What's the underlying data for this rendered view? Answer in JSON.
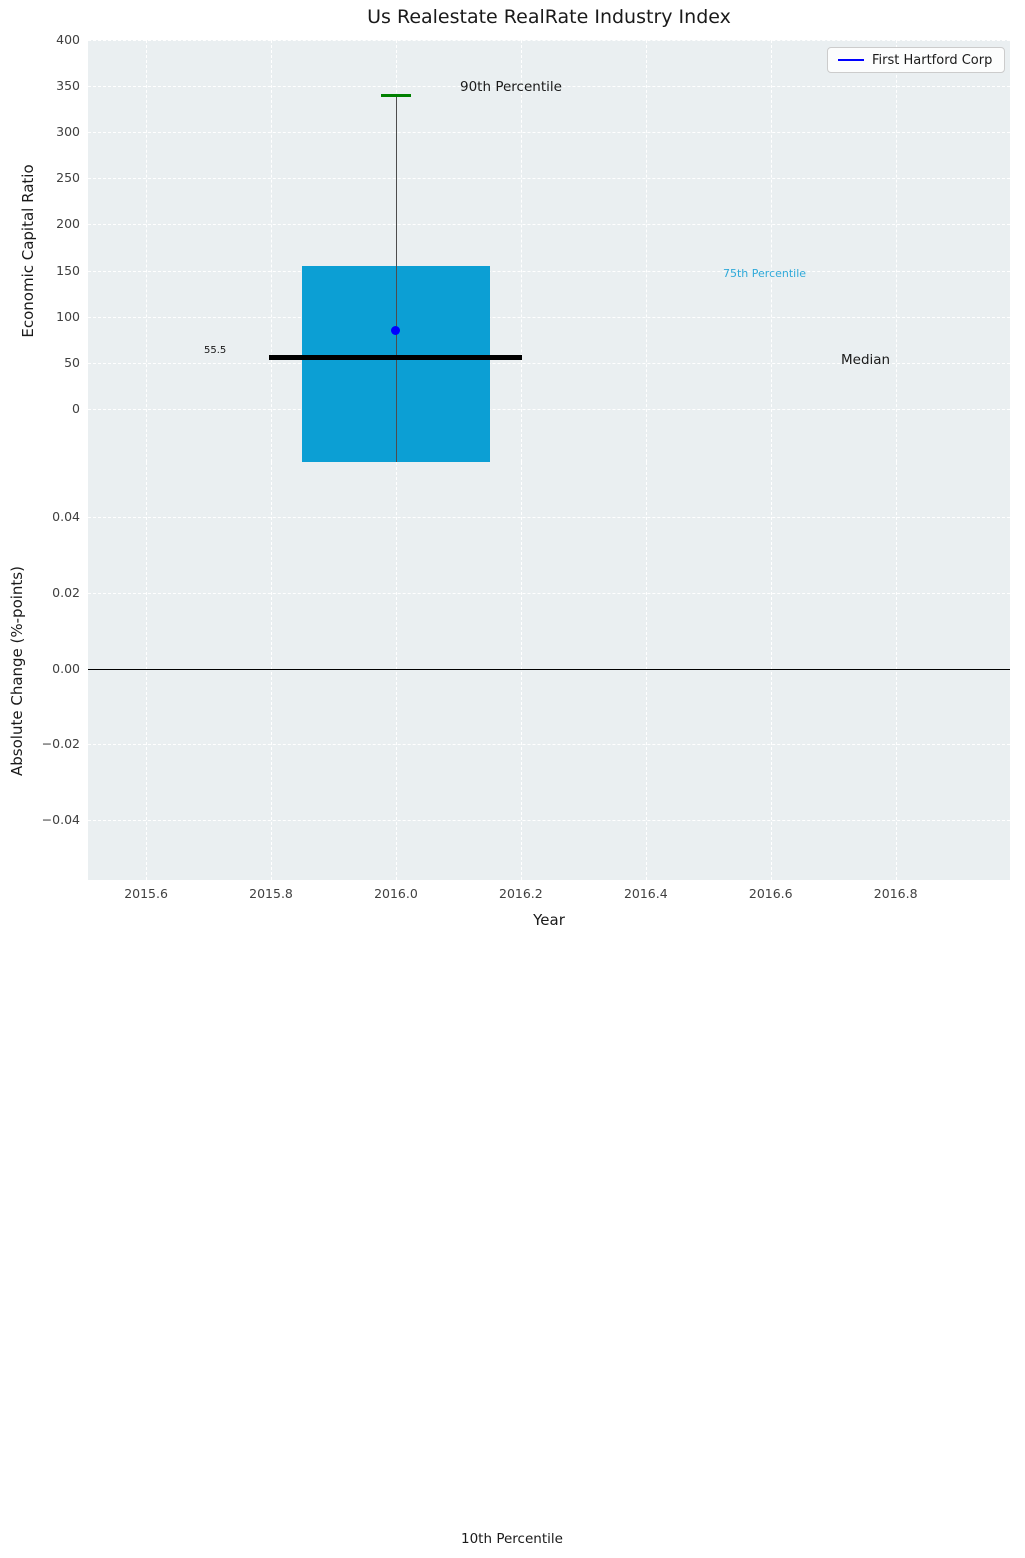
{
  "chart_data": {
    "type": "box",
    "title": "Us Realestate RealRate Industry Index",
    "xlabel": "Year",
    "xticks": [
      "2015.6",
      "2015.8",
      "2016.0",
      "2016.2",
      "2016.4",
      "2016.6",
      "2016.8"
    ],
    "xtick_values": [
      2015.6,
      2015.8,
      2016.0,
      2016.2,
      2016.4,
      2016.6,
      2016.8
    ],
    "xlim": [
      2015.507,
      2016.983
    ],
    "grid": "white-dashed",
    "legend_position": "top-right",
    "top": {
      "ylabel": "Economic Capital Ratio",
      "yticks": [
        "0",
        "50",
        "100",
        "150",
        "200",
        "250",
        "300",
        "350",
        "400"
      ],
      "ytick_values": [
        0,
        50,
        100,
        150,
        200,
        250,
        300,
        350,
        400
      ],
      "ylim": [
        -57.5,
        400
      ],
      "box": {
        "x": 2016.0,
        "half_width": 0.15,
        "p75": 155,
        "p90": 340,
        "median": 55.5,
        "median_half_width": 0.2025,
        "bottom_clipped": true,
        "color": "#0c9fd4",
        "median_color": "#000000",
        "cap_color": "#008000",
        "whisker_color": "#4d4d4d"
      },
      "point": {
        "name": "First Hartford Corp",
        "x": 2016.0,
        "y": 85,
        "color": "#0000ff"
      }
    },
    "bottom": {
      "ylabel": "Absolute Change (%-points)",
      "yticks": [
        "0.04",
        "0.02",
        "0.00",
        "−0.02",
        "−0.04"
      ],
      "ytick_values": [
        0.04,
        0.02,
        0.0,
        -0.02,
        -0.04
      ],
      "ylim": [
        -0.0558,
        0.0545
      ],
      "zero_line": 0.0
    },
    "annotations": {
      "p90": "90th Percentile",
      "p75": "75th Percentile",
      "median_value": "55.5",
      "median": "Median",
      "p10": "10th Percentile"
    },
    "legend": {
      "label": "First Hartford Corp",
      "line_color": "#0000ff"
    },
    "colors": {
      "axes_bg": "#eaeff1",
      "grid": "#ffffff",
      "p75_text": "#2fa9d9",
      "tick_text": "#404040"
    }
  }
}
